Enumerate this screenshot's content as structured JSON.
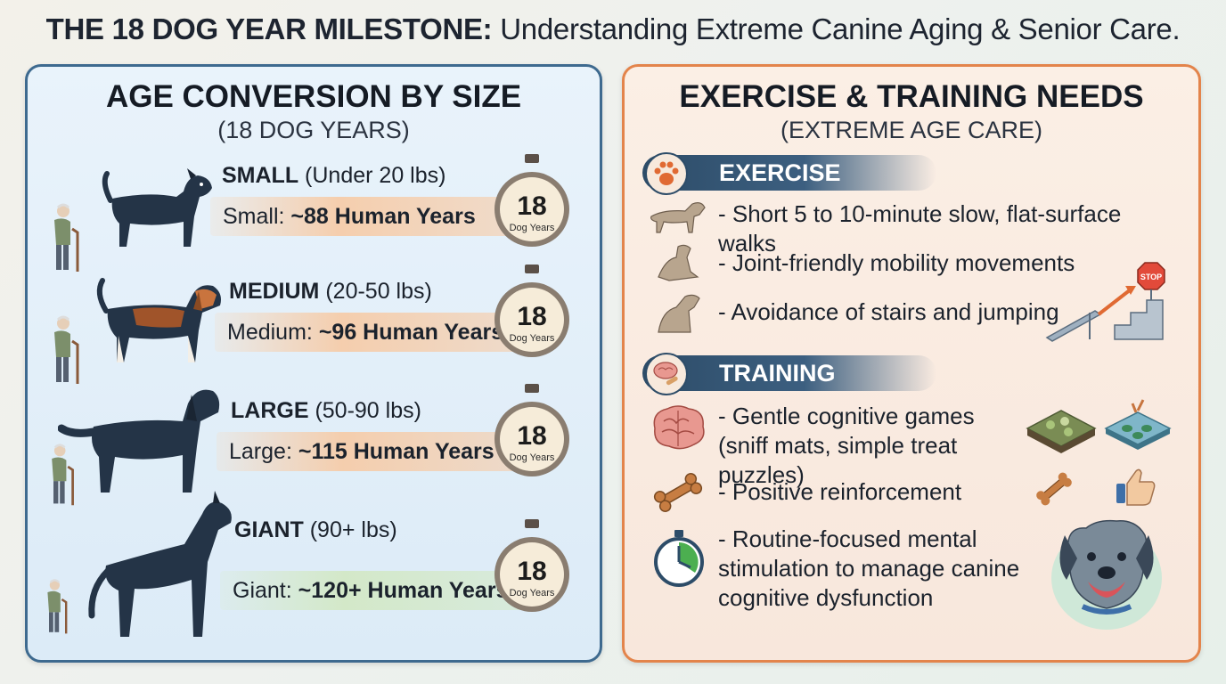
{
  "title": {
    "bold": "THE 18 DOG YEAR MILESTONE:",
    "rest": " Understanding Extreme Canine Aging & Senior Care."
  },
  "left": {
    "title": "AGE CONVERSION BY SIZE",
    "subtitle": "(18 DOG YEARS)",
    "timer_number": "18",
    "timer_caption": "Dog Years",
    "rows": [
      {
        "size": "SMALL",
        "range": " (Under 20 lbs)",
        "prefix": "Small: ",
        "value": "~88 Human Years"
      },
      {
        "size": "MEDIUM",
        "range": " (20-50 lbs)",
        "prefix": "Medium: ",
        "value": "~96 Human Years"
      },
      {
        "size": "LARGE",
        "range": " (50-90 lbs)",
        "prefix": "Large: ",
        "value": "~115 Human Years"
      },
      {
        "size": "GIANT",
        "range": "  (90+ lbs)",
        "prefix": "Giant: ",
        "value": "~120+ Human Years"
      }
    ]
  },
  "right": {
    "title": "EXERCISE & TRAINING NEEDS",
    "subtitle": "(EXTREME AGE CARE)",
    "exercise": {
      "heading": "EXERCISE",
      "items": [
        "- Short 5 to 10-minute slow, flat-surface walks",
        "- Joint-friendly mobility movements",
        "- Avoidance of stairs and jumping"
      ],
      "stop_sign": "STOP"
    },
    "training": {
      "heading": "TRAINING",
      "items": [
        "- Gentle cognitive games (sniff mats, simple treat puzzles)",
        "- Positive reinforcement",
        "- Routine-focused mental stimulation to manage canine cognitive dysfunction"
      ]
    }
  },
  "colors": {
    "left_border": "#3e6a8f",
    "right_border": "#e3844b",
    "section_head": "#2d4c68",
    "dog": "#243447"
  }
}
